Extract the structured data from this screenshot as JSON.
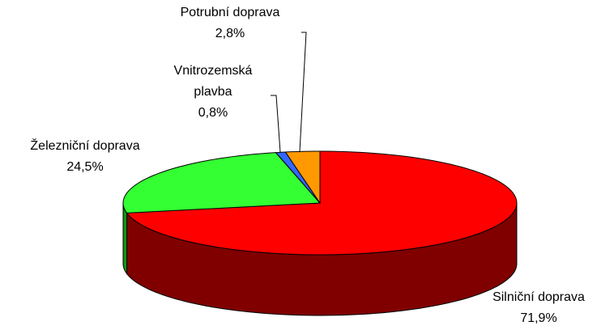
{
  "chart_data": {
    "type": "pie",
    "categories": [
      "Silniční doprava",
      "Železniční doprava",
      "Vnitrozemská plavba",
      "Potrubní doprava"
    ],
    "values": [
      71.9,
      24.5,
      0.8,
      2.8
    ],
    "value_labels": [
      "71,9%",
      "24,5%",
      "0,8%",
      "2,8%"
    ],
    "colors": [
      "#ff0000",
      "#33ff33",
      "#3366ff",
      "#ff9900"
    ],
    "side_colors": [
      "#800000",
      "#119911",
      "#1a3380",
      "#995c00"
    ]
  }
}
